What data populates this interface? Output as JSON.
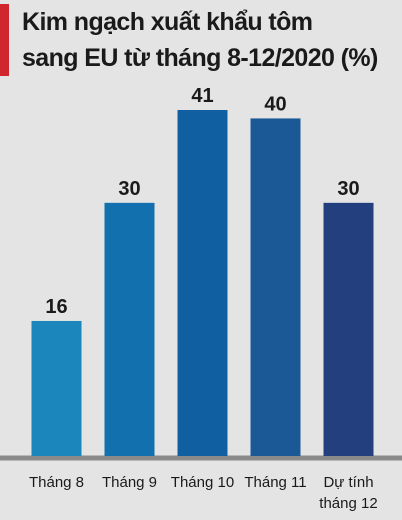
{
  "chart_data": {
    "type": "bar",
    "title": "Kim ngạch xuất khẩu tôm\nsang EU từ tháng 8-12/2020 (%)",
    "categories": [
      "Tháng 8",
      "Tháng 9",
      "Tháng 10",
      "Tháng 11",
      "Dự tính\ntháng 12"
    ],
    "values": [
      16,
      30,
      41,
      40,
      30
    ],
    "colors": [
      "#1b86bc",
      "#1170ad",
      "#105fa0",
      "#1b5896",
      "#243f7e"
    ]
  }
}
